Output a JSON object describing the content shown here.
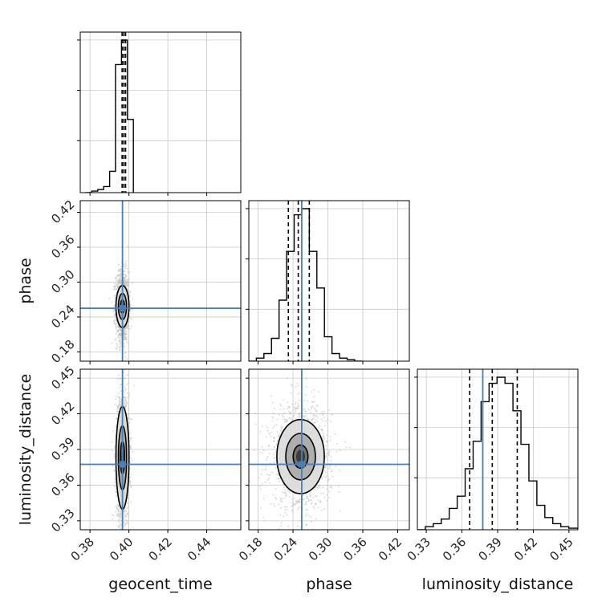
{
  "chart_data": {
    "type": "corner",
    "parameters": [
      "geocent_time",
      "phase",
      "luminosity_distance"
    ],
    "axis_labels": {
      "x": [
        "geocent_time",
        "phase",
        "luminosity_distance"
      ],
      "y": [
        "phase",
        "luminosity_distance"
      ]
    },
    "ranges": {
      "geocent_time": [
        0.375,
        0.4575
      ],
      "phase": [
        0.164,
        0.44
      ],
      "luminosity_distance": [
        0.3225,
        0.4575
      ]
    },
    "ticks": {
      "geocent_time": [
        0.38,
        0.4,
        0.42,
        0.44
      ],
      "phase": [
        0.18,
        0.24,
        0.3,
        0.36,
        0.42
      ],
      "luminosity_distance": [
        0.33,
        0.36,
        0.39,
        0.42,
        0.45
      ]
    },
    "tick_labels": {
      "geocent_time": [
        "0.38",
        "0.40",
        "0.42",
        "0.44"
      ],
      "phase": [
        "0.18",
        "0.24",
        "0.30",
        "0.36",
        "0.42"
      ],
      "luminosity_distance": [
        "0.33",
        "0.36",
        "0.39",
        "0.42",
        "0.45"
      ]
    },
    "truths": {
      "geocent_time": 0.3967,
      "phase": 0.255,
      "luminosity_distance": 0.3775
    },
    "quantiles": {
      "geocent_time": [
        0.3965,
        0.3974,
        0.3983
      ],
      "phase": [
        0.232,
        0.249,
        0.268
      ],
      "luminosity_distance": [
        0.3665,
        0.3855,
        0.4065
      ]
    },
    "histograms": {
      "geocent_time": {
        "edges": [
          0.3778,
          0.3809,
          0.384,
          0.387,
          0.3901,
          0.3931,
          0.3962,
          0.3992,
          0.4023
        ],
        "counts": [
          0.0,
          0.01,
          0.02,
          0.04,
          0.14,
          0.84,
          1.0,
          0.48
        ]
      },
      "phase": {
        "edges": [
          0.164,
          0.177,
          0.19,
          0.203,
          0.216,
          0.229,
          0.242,
          0.255,
          0.268,
          0.281,
          0.294,
          0.307,
          0.32,
          0.333,
          0.346,
          0.359
        ],
        "counts": [
          0.0,
          0.02,
          0.05,
          0.15,
          0.4,
          0.72,
          0.96,
          1.0,
          0.72,
          0.48,
          0.16,
          0.05,
          0.02,
          0.01,
          0.0
        ]
      },
      "luminosity_distance": {
        "edges": [
          0.3225,
          0.3292,
          0.3359,
          0.3426,
          0.3493,
          0.356,
          0.3627,
          0.3694,
          0.3761,
          0.3828,
          0.3895,
          0.3962,
          0.4029,
          0.4096,
          0.4163,
          0.423,
          0.4297,
          0.4364,
          0.4431,
          0.4498,
          0.4575
        ],
        "counts": [
          0.0,
          0.02,
          0.04,
          0.07,
          0.14,
          0.22,
          0.4,
          0.58,
          0.84,
          0.96,
          1.0,
          0.96,
          0.78,
          0.56,
          0.32,
          0.16,
          0.08,
          0.04,
          0.02,
          0.01
        ]
      }
    },
    "pairs": [
      {
        "x": "geocent_time",
        "y": "phase",
        "center": [
          0.3967,
          0.258
        ],
        "sigma": [
          0.0014,
          0.015
        ],
        "scatter_sigma": [
          0.0017,
          0.03
        ],
        "contour_levels": [
          0.5,
          1.0,
          1.6
        ]
      },
      {
        "x": "geocent_time",
        "y": "luminosity_distance",
        "center": [
          0.3967,
          0.383
        ],
        "sigma": [
          0.0014,
          0.018
        ],
        "scatter_sigma": [
          0.0017,
          0.028
        ],
        "contour_levels": [
          0.5,
          1.0,
          1.6
        ]
      },
      {
        "x": "phase",
        "y": "luminosity_distance",
        "center": [
          0.253,
          0.384
        ],
        "sigma": [
          0.017,
          0.013
        ],
        "scatter_sigma": [
          0.026,
          0.022
        ],
        "contour_levels": [
          0.5,
          1.0,
          1.6
        ]
      }
    ],
    "grid": true,
    "colors": {
      "truth": "#4a7fb5",
      "hist": "#000000",
      "scatter": "#bdbdbd",
      "density_dark": "#333333",
      "grid": "#c8c8c8"
    }
  }
}
